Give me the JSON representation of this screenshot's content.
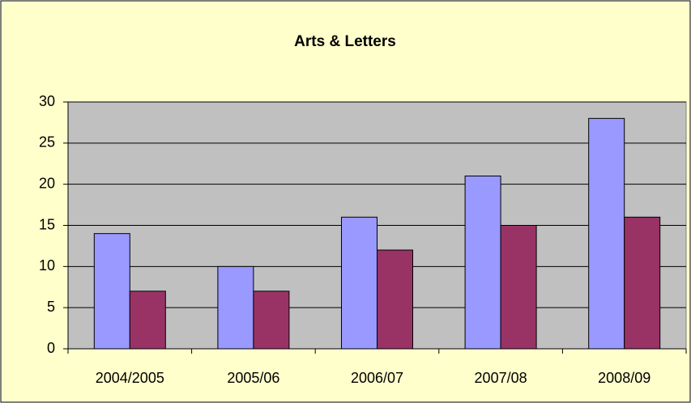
{
  "chart_data": {
    "type": "bar",
    "title": "Arts & Letters",
    "categories": [
      "2004/2005",
      "2005/06",
      "2006/07",
      "2007/08",
      "2008/09"
    ],
    "series": [
      {
        "color": "#9999ff",
        "values": [
          14,
          10,
          16,
          21,
          28
        ]
      },
      {
        "color": "#993366",
        "values": [
          7,
          7,
          12,
          15,
          16
        ]
      }
    ],
    "ylim": [
      0,
      30
    ],
    "yticks": [
      0,
      5,
      10,
      15,
      20,
      25,
      30
    ],
    "grid": true
  }
}
